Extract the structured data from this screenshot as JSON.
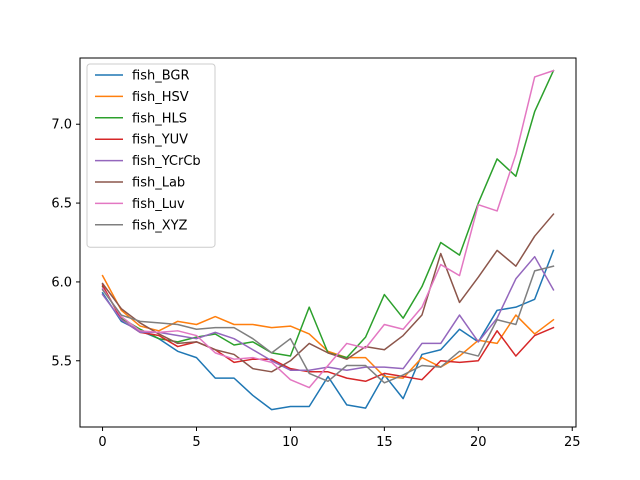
{
  "chart_data": {
    "type": "line",
    "title": "",
    "xlabel": "",
    "ylabel": "",
    "xlim": [
      -1.2,
      25.2
    ],
    "ylim": [
      5.08,
      7.42
    ],
    "x_ticks": [
      0,
      5,
      10,
      15,
      20,
      25
    ],
    "y_ticks": [
      5.5,
      6.0,
      6.5,
      7.0
    ],
    "x_tick_labels": [
      "0",
      "5",
      "10",
      "15",
      "20",
      "25"
    ],
    "y_tick_labels": [
      "5.5",
      "6.0",
      "6.5",
      "7.0"
    ],
    "grid": false,
    "legend_position": "top-left",
    "x": [
      0,
      1,
      2,
      3,
      4,
      5,
      6,
      7,
      8,
      9,
      10,
      11,
      12,
      13,
      14,
      15,
      16,
      17,
      18,
      19,
      20,
      21,
      22,
      23,
      24
    ],
    "series": [
      {
        "name": "fish_BGR",
        "color": "#1f77b4",
        "values": [
          5.93,
          5.75,
          5.69,
          5.64,
          5.56,
          5.52,
          5.39,
          5.39,
          5.28,
          5.19,
          5.21,
          5.21,
          5.4,
          5.22,
          5.2,
          5.41,
          5.26,
          5.54,
          5.57,
          5.7,
          5.62,
          5.82,
          5.84,
          5.89,
          6.2
        ]
      },
      {
        "name": "fish_HSV",
        "color": "#ff7f0e",
        "values": [
          6.04,
          5.82,
          5.72,
          5.69,
          5.75,
          5.73,
          5.78,
          5.73,
          5.73,
          5.71,
          5.72,
          5.67,
          5.56,
          5.52,
          5.52,
          5.4,
          5.39,
          5.52,
          5.46,
          5.53,
          5.63,
          5.61,
          5.79,
          5.67,
          5.76
        ]
      },
      {
        "name": "fish_HLS",
        "color": "#2ca02c",
        "values": [
          5.97,
          5.77,
          5.7,
          5.64,
          5.62,
          5.65,
          5.67,
          5.6,
          5.62,
          5.55,
          5.53,
          5.84,
          5.55,
          5.52,
          5.65,
          5.92,
          5.77,
          5.97,
          6.25,
          6.17,
          6.5,
          6.78,
          6.67,
          7.08,
          7.34
        ]
      },
      {
        "name": "fish_YUV",
        "color": "#d62728",
        "values": [
          5.98,
          5.76,
          5.68,
          5.66,
          5.59,
          5.62,
          5.57,
          5.49,
          5.51,
          5.51,
          5.45,
          5.43,
          5.43,
          5.39,
          5.37,
          5.42,
          5.4,
          5.38,
          5.5,
          5.49,
          5.5,
          5.69,
          5.53,
          5.66,
          5.71
        ]
      },
      {
        "name": "fish_YCrCb",
        "color": "#9467bd",
        "values": [
          5.92,
          5.76,
          5.68,
          5.68,
          5.66,
          5.64,
          5.68,
          5.64,
          5.57,
          5.5,
          5.44,
          5.44,
          5.46,
          5.44,
          5.46,
          5.46,
          5.45,
          5.61,
          5.61,
          5.79,
          5.62,
          5.77,
          6.02,
          6.16,
          5.95
        ]
      },
      {
        "name": "fish_Lab",
        "color": "#8c564b",
        "values": [
          5.99,
          5.83,
          5.74,
          5.67,
          5.61,
          5.62,
          5.57,
          5.54,
          5.45,
          5.43,
          5.5,
          5.61,
          5.55,
          5.51,
          5.59,
          5.57,
          5.66,
          5.79,
          6.18,
          5.87,
          6.03,
          6.2,
          6.1,
          6.29,
          6.43
        ]
      },
      {
        "name": "fish_Luv",
        "color": "#e377c2",
        "values": [
          5.96,
          5.78,
          5.69,
          5.68,
          5.69,
          5.66,
          5.55,
          5.51,
          5.52,
          5.49,
          5.38,
          5.33,
          5.47,
          5.61,
          5.58,
          5.73,
          5.7,
          5.84,
          6.11,
          6.04,
          6.49,
          6.45,
          6.81,
          7.3,
          7.34
        ]
      },
      {
        "name": "fish_XYZ",
        "color": "#7f7f7f",
        "values": [
          5.95,
          5.79,
          5.75,
          5.74,
          5.73,
          5.7,
          5.71,
          5.71,
          5.64,
          5.55,
          5.64,
          5.42,
          5.37,
          5.47,
          5.47,
          5.36,
          5.41,
          5.47,
          5.46,
          5.56,
          5.53,
          5.76,
          5.73,
          6.07,
          6.1
        ]
      }
    ]
  }
}
